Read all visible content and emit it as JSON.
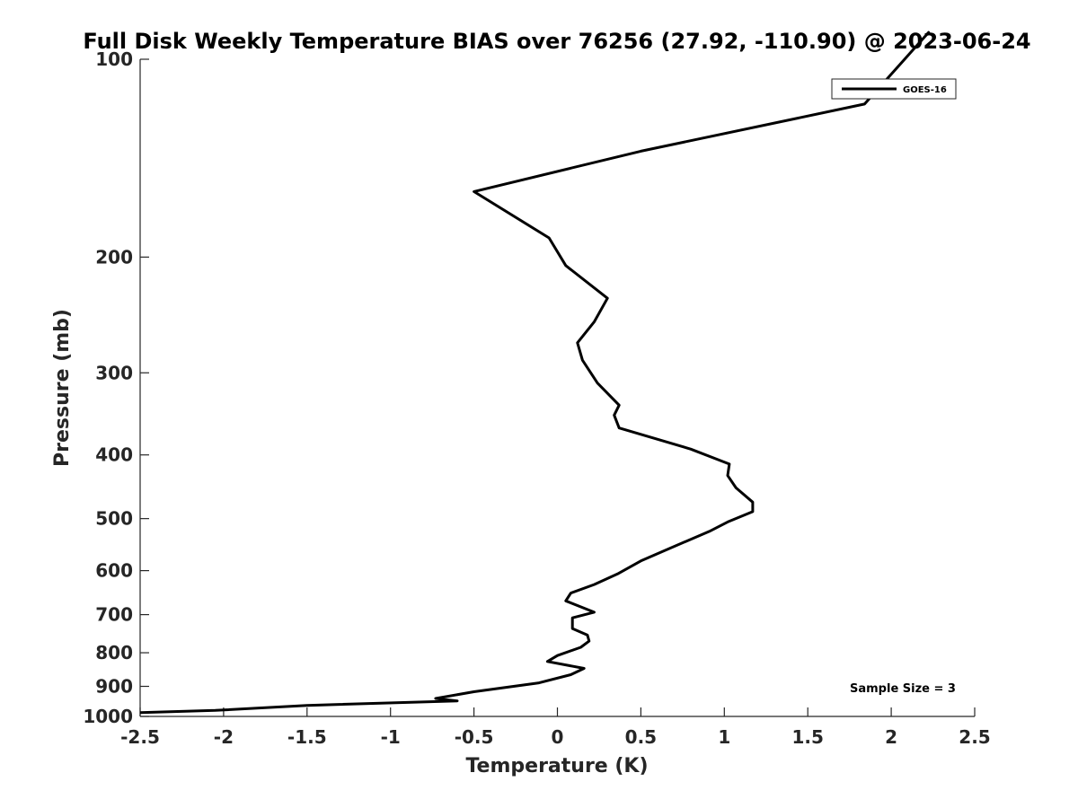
{
  "chart_data": {
    "type": "line",
    "title": "Full Disk Weekly Temperature BIAS over 76256 (27.92, -110.90) @ 2023-06-24",
    "xlabel": "Temperature (K)",
    "ylabel": "Pressure (mb)",
    "xlim": [
      -2.5,
      2.5
    ],
    "ylim": [
      100,
      1000
    ],
    "y_scale": "log",
    "y_reversed": true,
    "x_ticks": [
      "-2.5",
      "-2",
      "-1.5",
      "-1",
      "-0.5",
      "0",
      "0.5",
      "1",
      "1.5",
      "2",
      "2.5"
    ],
    "x_tick_values": [
      -2.5,
      -2,
      -1.5,
      -1,
      -0.5,
      0,
      0.5,
      1,
      1.5,
      2,
      2.5
    ],
    "y_ticks": [
      "100",
      "200",
      "300",
      "400",
      "500",
      "600",
      "700",
      "800",
      "900",
      "1000"
    ],
    "y_tick_values": [
      100,
      200,
      300,
      400,
      500,
      600,
      700,
      800,
      900,
      1000
    ],
    "grid": false,
    "legend": {
      "position": "top-right",
      "entries": [
        "GOES-16"
      ]
    },
    "annotation": "Sample Size = 3",
    "series": [
      {
        "name": "GOES-16",
        "color": "#000000",
        "points": [
          [
            2.08,
            100
          ],
          [
            1.84,
            117
          ],
          [
            0.5,
            138
          ],
          [
            -0.5,
            159
          ],
          [
            -0.05,
            187
          ],
          [
            0.05,
            206
          ],
          [
            0.3,
            231
          ],
          [
            0.22,
            251
          ],
          [
            0.12,
            270
          ],
          [
            0.15,
            287
          ],
          [
            0.24,
            311
          ],
          [
            0.37,
            336
          ],
          [
            0.34,
            348
          ],
          [
            0.37,
            364
          ],
          [
            0.8,
            392
          ],
          [
            1.03,
            413
          ],
          [
            1.02,
            430
          ],
          [
            1.07,
            449
          ],
          [
            1.17,
            472
          ],
          [
            1.17,
            488
          ],
          [
            1.02,
            506
          ],
          [
            0.91,
            523
          ],
          [
            0.68,
            554
          ],
          [
            0.5,
            580
          ],
          [
            0.36,
            607
          ],
          [
            0.22,
            630
          ],
          [
            0.08,
            649
          ],
          [
            0.05,
            667
          ],
          [
            0.22,
            694
          ],
          [
            0.09,
            708
          ],
          [
            0.09,
            735
          ],
          [
            0.18,
            752
          ],
          [
            0.19,
            768
          ],
          [
            0.14,
            785
          ],
          [
            0.0,
            808
          ],
          [
            -0.06,
            825
          ],
          [
            0.16,
            845
          ],
          [
            0.08,
            864
          ],
          [
            -0.11,
            889
          ],
          [
            -0.5,
            917
          ],
          [
            -0.73,
            939
          ],
          [
            -0.6,
            947
          ],
          [
            -1.5,
            962
          ],
          [
            -2.05,
            979
          ],
          [
            -2.5,
            987
          ]
        ]
      }
    ]
  }
}
